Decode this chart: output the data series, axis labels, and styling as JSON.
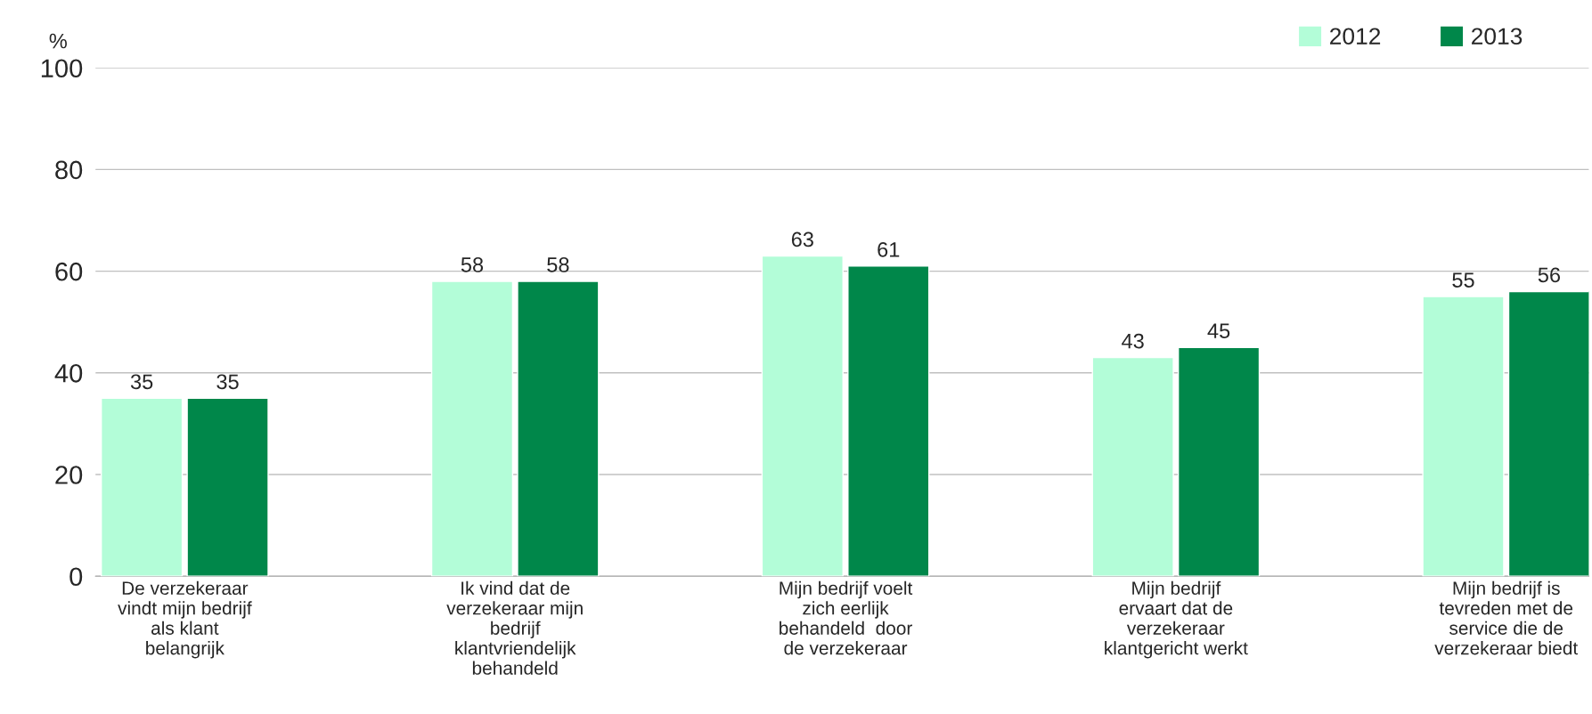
{
  "chart_data": {
    "type": "bar",
    "ylabel": "%",
    "categories": [
      "De verzekeraar\nvindt mijn bedrijf\nals klant\nbelangrijk",
      "Ik vind dat de\nverzekeraar mijn\nbedrijf\nklantvriendelijk\nbehandeld",
      "Mijn bedrijf voelt\nzich eerlijk\nbehandeld  door\nde verzekeraar",
      "Mijn bedrijf\nervaart dat de\nverzekeraar\nklantgericht werkt",
      "Mijn bedrijf is\ntevreden met de\nservice die de\nverzekeraar biedt"
    ],
    "series": [
      {
        "name": "2012",
        "color": "#b3fdd8",
        "values": [
          35,
          58,
          63,
          43,
          55
        ]
      },
      {
        "name": "2013",
        "color": "#00874a",
        "values": [
          35,
          58,
          61,
          45,
          56
        ]
      }
    ],
    "ylim": [
      0,
      100
    ],
    "yticks": [
      0,
      20,
      40,
      60,
      80,
      100
    ],
    "grid": "y",
    "legend": "top right",
    "data_labels": true
  }
}
